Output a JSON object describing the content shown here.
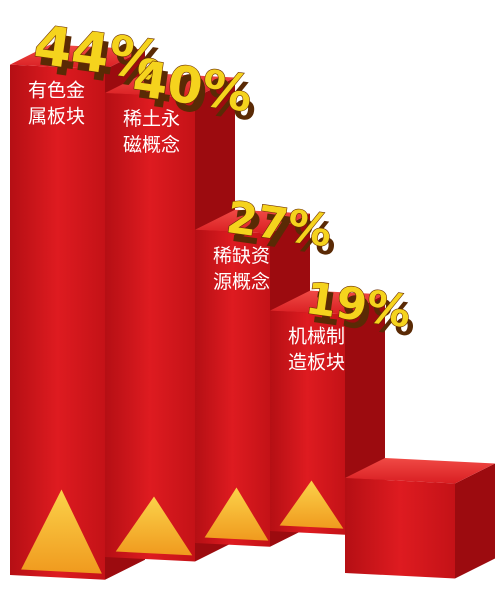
{
  "chart_data": {
    "type": "bar",
    "title": "",
    "xlabel": "",
    "ylabel": "",
    "categories": [
      "有色金属板块",
      "稀土永磁概念",
      "稀缺资源概念",
      "机械制造板块"
    ],
    "label_lines": [
      [
        "有色金",
        "属板块"
      ],
      [
        "稀土永",
        "磁概念"
      ],
      [
        "稀缺资",
        "源概念"
      ],
      [
        "机械制",
        "造板块"
      ]
    ],
    "values": [
      44,
      40,
      27,
      19
    ],
    "value_labels": [
      "44%",
      "40%",
      "27%",
      "19%"
    ],
    "unit": "%",
    "ylim": [
      0,
      50
    ],
    "grid": false,
    "legend": "none",
    "colors": {
      "front": "#d4161c",
      "front_dark": "#a80d11",
      "top": "#e8302f",
      "side": "#9c0b0f",
      "triangle": "#f5b02a",
      "triangle_light": "#fbd24a",
      "value_text": "#f5d31d",
      "label_text": "#ffffff"
    }
  }
}
